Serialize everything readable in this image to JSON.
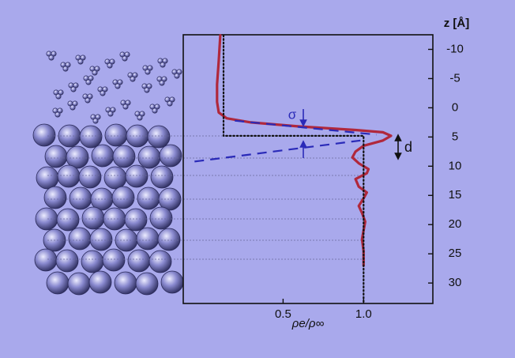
{
  "chart_data": {
    "type": "line",
    "x_label": "ρe/ρ∞",
    "y_label": "z [Å]",
    "annotations": [
      "σ",
      "d"
    ],
    "xlim": [
      -0.12,
      1.43
    ],
    "ylim": [
      -12.5,
      33.5
    ],
    "y_inverted": true,
    "xticks": [
      0.5,
      {
        "value": 1,
        "label": "1.0"
      }
    ],
    "yticks": [
      -10,
      -5,
      0,
      5,
      10,
      15,
      20,
      25,
      30
    ],
    "series": [
      {
        "color": "#b0283c",
        "style": "solid",
        "x": [
          0.11,
          0.1,
          0.09,
          0.09,
          0.1,
          0.15,
          0.3,
          0.6,
          0.95,
          1.12,
          1.17,
          1.12,
          1.0,
          0.95,
          0.93,
          0.97,
          1.03,
          1.02,
          0.95,
          0.97,
          1.02,
          1.0,
          0.97,
          0.99,
          1.01,
          1.0,
          0.99,
          1.0,
          1.0
        ],
        "values": [
          -12.4,
          -8,
          -4,
          -1,
          0.8,
          1.8,
          2.5,
          3.2,
          3.8,
          4.2,
          4.8,
          5.6,
          6.5,
          7.5,
          8.5,
          9.5,
          10.5,
          11.2,
          12.2,
          13.5,
          14.5,
          15.5,
          16.8,
          18,
          19.5,
          21,
          22.5,
          24.5,
          27
        ]
      },
      {
        "color": "#111111",
        "style": "dotted",
        "x": [
          0.13,
          0.13,
          1.0,
          1.0
        ],
        "values": [
          -12.4,
          4.8,
          4.8,
          33.4
        ]
      },
      {
        "color": "#2a2ab8",
        "style": "dashed",
        "x": [
          0.2,
          1.08
        ],
        "values": [
          2.2,
          4.6
        ]
      },
      {
        "color": "#2a2ab8",
        "style": "dashed",
        "x": [
          -0.05,
          0.98
        ],
        "values": [
          9.2,
          5.6
        ]
      }
    ]
  }
}
